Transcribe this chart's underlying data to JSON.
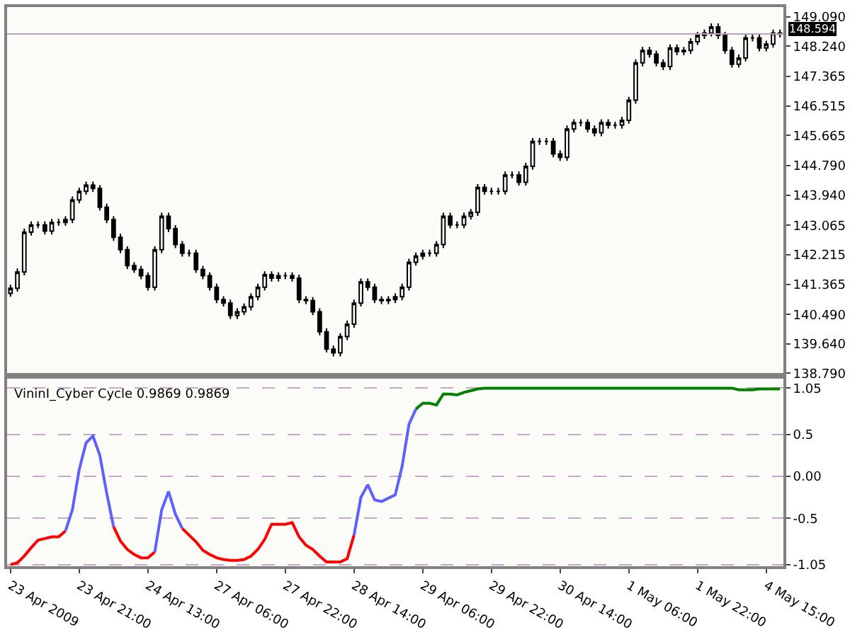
{
  "chart_data": [
    {
      "type": "candlestick",
      "color": "#000000",
      "tick_labels": "y",
      "categories": [
        null,
        null,
        null,
        null,
        null,
        null,
        null,
        null,
        null,
        null,
        null,
        null,
        null,
        null,
        null,
        null,
        null,
        null,
        null,
        null,
        null,
        null,
        null,
        null,
        null,
        null,
        null,
        null,
        null,
        null,
        null,
        null,
        null,
        null,
        null,
        null,
        null,
        null,
        null,
        null,
        null,
        null,
        null,
        null,
        null,
        null,
        null,
        null,
        null,
        null,
        null,
        null,
        null,
        null,
        null,
        null,
        null,
        null,
        null,
        null,
        null,
        null,
        null,
        null,
        null,
        null,
        null,
        null,
        null,
        null,
        null,
        null,
        null,
        null,
        null,
        null,
        null,
        null,
        null,
        null,
        null,
        null,
        null,
        null,
        null,
        null,
        null,
        null,
        null,
        null,
        null,
        null,
        null,
        null,
        null,
        null,
        null,
        null,
        null,
        null,
        null,
        null,
        null,
        null,
        null,
        null,
        null,
        null,
        null,
        null,
        null,
        null,
        null
      ],
      "ohlc": [
        [
          141.1,
          141.35,
          141.0,
          141.25
        ],
        [
          141.25,
          141.82,
          141.15,
          141.72
        ],
        [
          141.72,
          142.97,
          141.62,
          142.87
        ],
        [
          142.87,
          143.18,
          142.77,
          143.08
        ],
        [
          143.08,
          143.18,
          142.98,
          143.08
        ],
        [
          143.08,
          143.18,
          142.8,
          142.9
        ],
        [
          142.9,
          143.25,
          142.8,
          143.15
        ],
        [
          143.15,
          143.25,
          143.05,
          143.15
        ],
        [
          143.15,
          143.33,
          143.05,
          143.23
        ],
        [
          143.23,
          143.9,
          143.13,
          143.8
        ],
        [
          143.8,
          144.15,
          143.7,
          144.05
        ],
        [
          144.05,
          144.33,
          143.95,
          144.23
        ],
        [
          144.23,
          144.33,
          144.03,
          144.13
        ],
        [
          144.13,
          144.23,
          143.49,
          143.59
        ],
        [
          143.59,
          143.69,
          143.13,
          143.23
        ],
        [
          143.23,
          143.33,
          142.62,
          142.72
        ],
        [
          142.72,
          142.82,
          142.26,
          142.36
        ],
        [
          142.36,
          142.46,
          141.8,
          141.9
        ],
        [
          141.9,
          142.0,
          141.69,
          141.79
        ],
        [
          141.79,
          141.89,
          141.51,
          141.61
        ],
        [
          141.61,
          141.71,
          141.18,
          141.28
        ],
        [
          141.28,
          142.46,
          141.18,
          142.36
        ],
        [
          142.36,
          143.43,
          142.26,
          143.33
        ],
        [
          143.33,
          143.43,
          142.87,
          142.97
        ],
        [
          142.97,
          143.07,
          142.41,
          142.51
        ],
        [
          142.51,
          142.61,
          142.16,
          142.26
        ],
        [
          142.26,
          142.36,
          142.16,
          142.26
        ],
        [
          142.26,
          142.36,
          141.69,
          141.79
        ],
        [
          141.79,
          141.89,
          141.51,
          141.61
        ],
        [
          141.61,
          141.71,
          141.18,
          141.28
        ],
        [
          141.28,
          141.38,
          140.82,
          140.92
        ],
        [
          140.92,
          141.02,
          140.72,
          140.82
        ],
        [
          140.82,
          140.92,
          140.36,
          140.46
        ],
        [
          140.46,
          140.67,
          140.36,
          140.57
        ],
        [
          140.57,
          140.81,
          140.47,
          140.71
        ],
        [
          140.71,
          141.1,
          140.61,
          141.0
        ],
        [
          141.0,
          141.38,
          140.9,
          141.28
        ],
        [
          141.28,
          141.74,
          141.18,
          141.64
        ],
        [
          141.64,
          141.74,
          141.44,
          141.54
        ],
        [
          141.54,
          141.71,
          141.44,
          141.61
        ],
        [
          141.61,
          141.71,
          141.51,
          141.61
        ],
        [
          141.61,
          141.71,
          141.44,
          141.54
        ],
        [
          141.54,
          141.64,
          140.82,
          140.92
        ],
        [
          140.92,
          141.02,
          140.79,
          140.89
        ],
        [
          140.89,
          140.99,
          140.47,
          140.57
        ],
        [
          140.57,
          140.67,
          139.89,
          139.99
        ],
        [
          139.99,
          140.09,
          139.39,
          139.49
        ],
        [
          139.49,
          139.59,
          139.28,
          139.38
        ],
        [
          139.38,
          139.95,
          139.28,
          139.85
        ],
        [
          139.85,
          140.31,
          139.75,
          140.21
        ],
        [
          140.21,
          140.92,
          140.11,
          140.82
        ],
        [
          140.82,
          141.53,
          140.72,
          141.43
        ],
        [
          141.43,
          141.53,
          141.18,
          141.28
        ],
        [
          141.28,
          141.38,
          140.82,
          140.92
        ],
        [
          140.92,
          141.02,
          140.79,
          140.89
        ],
        [
          140.89,
          141.02,
          140.79,
          140.92
        ],
        [
          140.92,
          141.1,
          140.82,
          141.0
        ],
        [
          141.0,
          141.38,
          140.9,
          141.28
        ],
        [
          141.28,
          142.1,
          141.18,
          142.0
        ],
        [
          142.0,
          142.28,
          141.9,
          142.18
        ],
        [
          142.18,
          142.36,
          142.08,
          142.26
        ],
        [
          142.26,
          142.36,
          142.16,
          142.26
        ],
        [
          142.26,
          142.61,
          142.16,
          142.51
        ],
        [
          142.51,
          143.43,
          142.41,
          143.33
        ],
        [
          143.33,
          143.43,
          142.98,
          143.08
        ],
        [
          143.08,
          143.18,
          142.98,
          143.08
        ],
        [
          143.08,
          143.43,
          142.98,
          143.33
        ],
        [
          143.33,
          143.54,
          143.23,
          143.44
        ],
        [
          143.44,
          144.26,
          143.34,
          144.16
        ],
        [
          144.16,
          144.26,
          143.95,
          144.05
        ],
        [
          144.05,
          144.15,
          143.95,
          144.05
        ],
        [
          144.05,
          144.15,
          143.95,
          144.05
        ],
        [
          144.05,
          144.62,
          143.95,
          144.52
        ],
        [
          144.52,
          144.62,
          144.42,
          144.52
        ],
        [
          144.52,
          144.62,
          144.21,
          144.31
        ],
        [
          144.31,
          144.87,
          144.21,
          144.77
        ],
        [
          144.77,
          145.59,
          144.67,
          145.49
        ],
        [
          145.49,
          145.59,
          145.39,
          145.49
        ],
        [
          145.49,
          145.59,
          145.39,
          145.49
        ],
        [
          145.49,
          145.59,
          145.03,
          145.13
        ],
        [
          145.13,
          145.23,
          144.93,
          145.03
        ],
        [
          145.03,
          145.95,
          144.93,
          145.85
        ],
        [
          145.85,
          146.13,
          145.75,
          146.03
        ],
        [
          146.03,
          146.13,
          145.93,
          146.03
        ],
        [
          146.03,
          146.13,
          145.75,
          145.85
        ],
        [
          145.85,
          145.95,
          145.64,
          145.74
        ],
        [
          145.74,
          146.13,
          145.64,
          146.03
        ],
        [
          146.03,
          146.13,
          145.86,
          145.96
        ],
        [
          145.96,
          146.06,
          145.86,
          145.96
        ],
        [
          145.96,
          146.2,
          145.86,
          146.1
        ],
        [
          146.1,
          146.78,
          146.0,
          146.68
        ],
        [
          146.68,
          147.86,
          146.58,
          147.76
        ],
        [
          147.76,
          148.22,
          147.66,
          148.12
        ],
        [
          148.12,
          148.22,
          147.91,
          148.01
        ],
        [
          148.01,
          148.11,
          147.66,
          147.76
        ],
        [
          147.76,
          147.86,
          147.55,
          147.65
        ],
        [
          147.65,
          148.29,
          147.55,
          148.19
        ],
        [
          148.19,
          148.29,
          147.98,
          148.08
        ],
        [
          148.08,
          148.22,
          147.98,
          148.12
        ],
        [
          148.12,
          148.47,
          148.02,
          148.37
        ],
        [
          148.37,
          148.65,
          148.27,
          148.55
        ],
        [
          148.55,
          148.72,
          148.45,
          148.62
        ],
        [
          148.62,
          148.9,
          148.52,
          148.8
        ],
        [
          148.8,
          148.9,
          148.45,
          148.55
        ],
        [
          148.55,
          148.65,
          148.02,
          148.12
        ],
        [
          148.12,
          148.22,
          147.62,
          147.72
        ],
        [
          147.72,
          148.0,
          147.62,
          147.9
        ],
        [
          147.9,
          148.58,
          147.8,
          148.48
        ],
        [
          148.48,
          148.58,
          148.38,
          148.48
        ],
        [
          148.48,
          148.58,
          148.09,
          148.19
        ],
        [
          148.19,
          148.4,
          148.09,
          148.3
        ],
        [
          148.3,
          148.72,
          148.2,
          148.62
        ],
        [
          148.62,
          148.72,
          148.49,
          148.59
        ]
      ],
      "ylim": [
        138.79,
        149.37
      ],
      "yticks": [
        {
          "value": 149.09,
          "label": "149.090"
        },
        {
          "value": 148.24,
          "label": "148.240"
        },
        {
          "value": 147.365,
          "label": "147.365"
        },
        {
          "value": 146.515,
          "label": "146.515"
        },
        {
          "value": 145.665,
          "label": "145.665"
        },
        {
          "value": 144.79,
          "label": "144.790"
        },
        {
          "value": 143.94,
          "label": "143.940"
        },
        {
          "value": 143.065,
          "label": "143.065"
        },
        {
          "value": 142.215,
          "label": "142.215"
        },
        {
          "value": 141.365,
          "label": "141.365"
        },
        {
          "value": 140.49,
          "label": "140.490"
        },
        {
          "value": 139.64,
          "label": "139.640"
        },
        {
          "value": 138.79,
          "label": "138.790"
        }
      ],
      "ref_lines": [
        {
          "axis": "y",
          "value": 148.594,
          "label": "148.594",
          "color": "#c0a0c0"
        }
      ]
    },
    {
      "type": "line",
      "title": "VininI_Cyber Cycle 0.9869 0.9869",
      "categories": [
        "23 Apr 2009",
        null,
        null,
        null,
        null,
        null,
        null,
        null,
        null,
        null,
        "23 Apr 21:00",
        null,
        null,
        null,
        null,
        null,
        null,
        null,
        null,
        null,
        "24 Apr 13:00",
        null,
        null,
        null,
        null,
        null,
        null,
        null,
        null,
        null,
        "27 Apr 06:00",
        null,
        null,
        null,
        null,
        null,
        null,
        null,
        null,
        null,
        "27 Apr 22:00",
        null,
        null,
        null,
        null,
        null,
        null,
        null,
        null,
        null,
        "28 Apr 14:00",
        null,
        null,
        null,
        null,
        null,
        null,
        null,
        null,
        null,
        "29 Apr 06:00",
        null,
        null,
        null,
        null,
        null,
        null,
        null,
        null,
        null,
        "29 Apr 22:00",
        null,
        null,
        null,
        null,
        null,
        null,
        null,
        null,
        null,
        "30 Apr 14:00",
        null,
        null,
        null,
        null,
        null,
        null,
        null,
        null,
        null,
        "1 May 06:00",
        null,
        null,
        null,
        null,
        null,
        null,
        null,
        null,
        null,
        "1 May 22:00",
        null,
        null,
        null,
        null,
        null,
        null,
        null,
        null,
        null,
        "4 May 15:00",
        null,
        null
      ],
      "series": [
        {
          "color": "#ff0000",
          "values": [
            -1.05,
            -1.03,
            -0.95,
            -0.85,
            -0.76,
            -0.74,
            -0.72,
            -0.72,
            -0.65,
            null,
            null,
            null,
            null,
            null,
            null,
            -0.6,
            -0.77,
            -0.87,
            -0.93,
            -0.97,
            -0.97,
            -0.9,
            null,
            null,
            null,
            -0.62,
            -0.7,
            -0.78,
            -0.88,
            -0.93,
            -0.97,
            -0.99,
            -1.0,
            -1.0,
            -0.99,
            -0.95,
            -0.87,
            -0.75,
            -0.57,
            -0.57,
            -0.57,
            -0.55,
            -0.72,
            -0.82,
            -0.87,
            -0.95,
            -1.02,
            -1.02,
            -1.02,
            -0.98,
            -0.7,
            null,
            null,
            null,
            null,
            null,
            null,
            null,
            null,
            null,
            null,
            null,
            null,
            null,
            null,
            null,
            null,
            null,
            null,
            null,
            null,
            null,
            null,
            null,
            null,
            null,
            null,
            null,
            null,
            null,
            null,
            null,
            null,
            null,
            null,
            null,
            null,
            null,
            null,
            null,
            null,
            null,
            null,
            null,
            null,
            null,
            null,
            null,
            null,
            null,
            null,
            null,
            null,
            null,
            null,
            null,
            null,
            null,
            null,
            null,
            null,
            null,
            null
          ]
        },
        {
          "color": "#6060ff",
          "values": [
            null,
            null,
            null,
            null,
            null,
            null,
            null,
            null,
            -0.65,
            -0.4,
            0.08,
            0.4,
            0.48,
            0.25,
            -0.2,
            -0.6,
            null,
            null,
            null,
            null,
            null,
            -0.9,
            -0.4,
            -0.18,
            -0.45,
            -0.62,
            null,
            null,
            null,
            null,
            null,
            null,
            null,
            null,
            null,
            null,
            null,
            null,
            null,
            null,
            null,
            null,
            null,
            null,
            null,
            null,
            null,
            null,
            null,
            null,
            -0.7,
            -0.25,
            -0.1,
            -0.28,
            -0.3,
            -0.26,
            -0.22,
            0.12,
            0.62,
            0.8,
            null,
            null,
            null,
            null,
            null,
            null,
            null,
            null,
            null,
            null,
            null,
            null,
            null,
            null,
            null,
            null,
            null,
            null,
            null,
            null,
            null,
            null,
            null,
            null,
            null,
            null,
            null,
            null,
            null,
            null,
            null,
            null,
            null,
            null,
            null,
            null,
            null,
            null,
            null,
            null,
            null,
            null,
            null,
            null,
            null,
            null,
            null,
            null,
            null,
            null,
            null,
            null,
            null
          ]
        },
        {
          "color": "#008000",
          "values": [
            null,
            null,
            null,
            null,
            null,
            null,
            null,
            null,
            null,
            null,
            null,
            null,
            null,
            null,
            null,
            null,
            null,
            null,
            null,
            null,
            null,
            null,
            null,
            null,
            null,
            null,
            null,
            null,
            null,
            null,
            null,
            null,
            null,
            null,
            null,
            null,
            null,
            null,
            null,
            null,
            null,
            null,
            null,
            null,
            null,
            null,
            null,
            null,
            null,
            null,
            null,
            null,
            null,
            null,
            null,
            null,
            null,
            null,
            null,
            0.8,
            0.87,
            0.87,
            0.85,
            0.98,
            0.98,
            0.97,
            1.0,
            1.02,
            1.04,
            1.05,
            1.05,
            1.05,
            1.05,
            1.05,
            1.05,
            1.05,
            1.05,
            1.05,
            1.05,
            1.05,
            1.05,
            1.05,
            1.05,
            1.05,
            1.05,
            1.05,
            1.05,
            1.05,
            1.05,
            1.05,
            1.05,
            1.05,
            1.05,
            1.05,
            1.05,
            1.05,
            1.05,
            1.05,
            1.05,
            1.05,
            1.05,
            1.05,
            1.05,
            1.05,
            1.05,
            1.05,
            1.03,
            1.03,
            1.03,
            1.04,
            1.04,
            1.04,
            1.04
          ]
        }
      ],
      "ylim": [
        -1.07,
        1.16
      ],
      "yticks": [
        1.05,
        0.5,
        {
          "value": 0,
          "label": "0.00"
        },
        -0.5,
        -1.05
      ],
      "grid": "y"
    }
  ]
}
